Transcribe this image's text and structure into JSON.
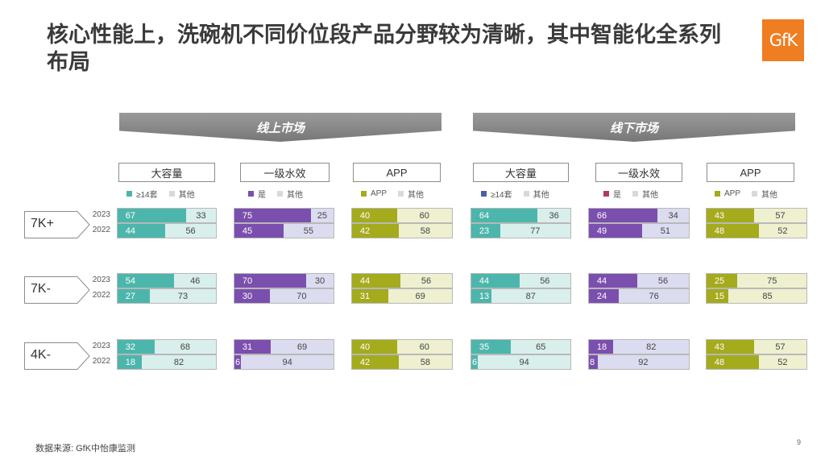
{
  "title": "核心性能上，洗碗机不同价位段产品分野较为清晰，其中智能化全系列布局",
  "logo_text": "GfK",
  "markets": [
    "线上市场",
    "线下市场"
  ],
  "headers": [
    "大容量",
    "一级水效",
    "APP",
    "大容量",
    "一级水效",
    "APP"
  ],
  "legends": [
    {
      "a": "≥14套",
      "b": "其他",
      "color": "#4db6ac"
    },
    {
      "a": "是",
      "b": "其他",
      "color": "#7b4fad"
    },
    {
      "a": "APP",
      "b": "其他",
      "color": "#a4ab1c"
    },
    {
      "a": "≥14套",
      "b": "其他",
      "color": "#4a5fa8"
    },
    {
      "a": "是",
      "b": "其他",
      "color": "#b23a5a"
    },
    {
      "a": "APP",
      "b": "其他",
      "color": "#a4ab1c"
    }
  ],
  "segments": [
    "7K+",
    "7K-",
    "4K-"
  ],
  "years": [
    "2023",
    "2022"
  ],
  "source": "数据来源: GfK中怡康监测",
  "page_number": "9",
  "colors": {
    "teal": "#4db6ac",
    "teal_light": "#d9efec",
    "purple": "#7b4fad",
    "purple_light": "#dcdcf0",
    "olive": "#a4ab1c",
    "olive_light": "#eef0d0",
    "legend_gray": "#d9d9d9"
  },
  "chart_data": {
    "type": "bar",
    "stacked": true,
    "unit": "%",
    "groups": [
      {
        "market": "线上市场",
        "metric": "大容量",
        "legend": [
          "≥14套",
          "其他"
        ],
        "values": {
          "7K+": {
            "2023": [
              67,
              33
            ],
            "2022": [
              44,
              56
            ]
          },
          "7K-": {
            "2023": [
              54,
              46
            ],
            "2022": [
              27,
              73
            ]
          },
          "4K-": {
            "2023": [
              32,
              68
            ],
            "2022": [
              18,
              82
            ]
          }
        }
      },
      {
        "market": "线上市场",
        "metric": "一级水效",
        "legend": [
          "是",
          "其他"
        ],
        "values": {
          "7K+": {
            "2023": [
              75,
              25
            ],
            "2022": [
              45,
              55
            ]
          },
          "7K-": {
            "2023": [
              70,
              30
            ],
            "2022": [
              30,
              70
            ]
          },
          "4K-": {
            "2023": [
              31,
              69
            ],
            "2022": [
              6,
              94
            ]
          }
        }
      },
      {
        "market": "线上市场",
        "metric": "APP",
        "legend": [
          "APP",
          "其他"
        ],
        "values": {
          "7K+": {
            "2023": [
              40,
              60
            ],
            "2022": [
              42,
              58
            ]
          },
          "7K-": {
            "2023": [
              44,
              56
            ],
            "2022": [
              31,
              69
            ]
          },
          "4K-": {
            "2023": [
              40,
              60
            ],
            "2022": [
              42,
              58
            ]
          }
        }
      },
      {
        "market": "线下市场",
        "metric": "大容量",
        "legend": [
          "≥14套",
          "其他"
        ],
        "values": {
          "7K+": {
            "2023": [
              64,
              36
            ],
            "2022": [
              23,
              77
            ]
          },
          "7K-": {
            "2023": [
              44,
              56
            ],
            "2022": [
              13,
              87
            ]
          },
          "4K-": {
            "2023": [
              35,
              65
            ],
            "2022": [
              6,
              94
            ]
          }
        }
      },
      {
        "market": "线下市场",
        "metric": "一级水效",
        "legend": [
          "是",
          "其他"
        ],
        "values": {
          "7K+": {
            "2023": [
              66,
              34
            ],
            "2022": [
              49,
              51
            ]
          },
          "7K-": {
            "2023": [
              44,
              56
            ],
            "2022": [
              24,
              76
            ]
          },
          "4K-": {
            "2023": [
              18,
              82
            ],
            "2022": [
              8,
              92
            ]
          }
        }
      },
      {
        "market": "线下市场",
        "metric": "APP",
        "legend": [
          "APP",
          "其他"
        ],
        "values": {
          "7K+": {
            "2023": [
              43,
              57
            ],
            "2022": [
              48,
              52
            ]
          },
          "7K-": {
            "2023": [
              25,
              75
            ],
            "2022": [
              15,
              85
            ]
          },
          "4K-": {
            "2023": [
              43,
              57
            ],
            "2022": [
              48,
              52
            ]
          }
        }
      }
    ]
  }
}
